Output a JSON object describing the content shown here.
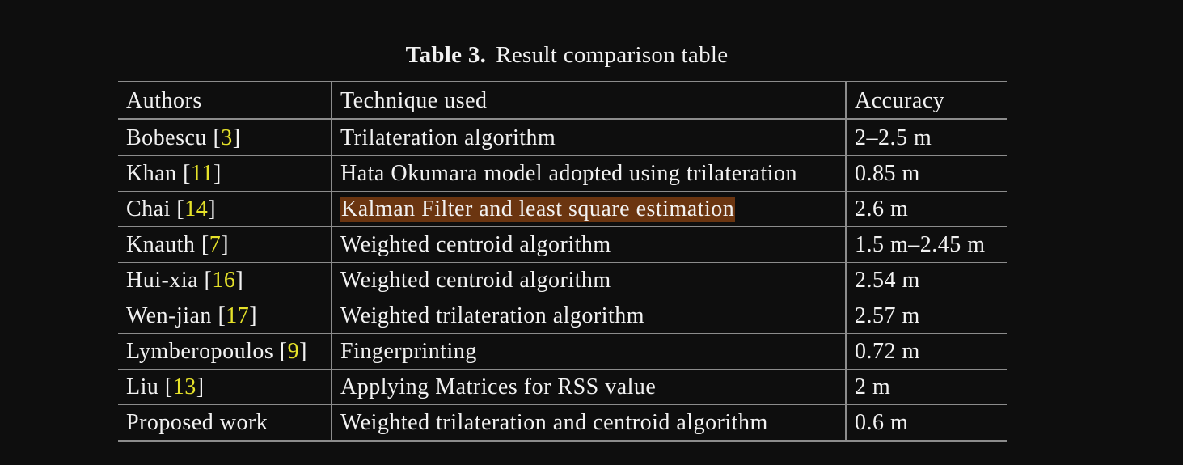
{
  "caption": {
    "label": "Table 3.",
    "title": "Result comparison table"
  },
  "table": {
    "headers": [
      "Authors",
      "Technique used",
      "Accuracy"
    ],
    "rows": [
      {
        "author": "Bobescu",
        "ref": "3",
        "technique": "Trilateration algorithm",
        "accuracy": "2–2.5 m",
        "highlight": false
      },
      {
        "author": "Khan",
        "ref": "11",
        "technique": "Hata Okumara model adopted using trilateration",
        "accuracy": "0.85 m",
        "highlight": false
      },
      {
        "author": "Chai",
        "ref": "14",
        "technique": "Kalman Filter and least square estimation",
        "accuracy": "2.6 m",
        "highlight": true
      },
      {
        "author": "Knauth",
        "ref": "7",
        "technique": "Weighted centroid algorithm",
        "accuracy": "1.5 m–2.45 m",
        "highlight": false
      },
      {
        "author": "Hui-xia",
        "ref": "16",
        "technique": "Weighted centroid algorithm",
        "accuracy": "2.54 m",
        "highlight": false
      },
      {
        "author": "Wen-jian",
        "ref": "17",
        "technique": "Weighted trilateration algorithm",
        "accuracy": "2.57 m",
        "highlight": false
      },
      {
        "author": "Lymberopoulos",
        "ref": "9",
        "technique": "Fingerprinting",
        "accuracy": "0.72 m",
        "highlight": false
      },
      {
        "author": "Liu",
        "ref": "13",
        "technique": "Applying Matrices for RSS value",
        "accuracy": "2 m",
        "highlight": false
      },
      {
        "author": "Proposed work",
        "ref": "",
        "technique": "Weighted trilateration and centroid algorithm",
        "accuracy": "0.6 m",
        "highlight": false
      }
    ]
  },
  "colors": {
    "background": "#0e0e0e",
    "text": "#f2f2f2",
    "reference_link": "#e6e22a",
    "highlight": "#6b3510",
    "rule": "#8c8c8c"
  }
}
